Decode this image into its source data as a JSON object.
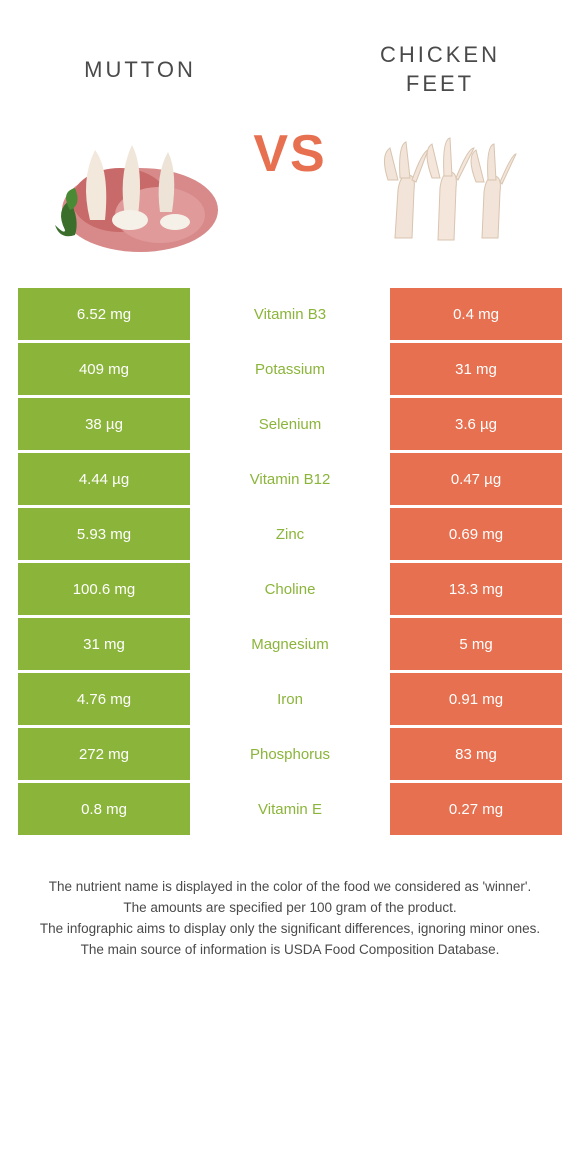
{
  "colors": {
    "green": "#8bb53a",
    "orange": "#e67050",
    "vs": "#e67050",
    "title_text": "#4a4a4a",
    "footnote_text": "#4a4a4a",
    "white": "#ffffff"
  },
  "header": {
    "left_title": "MUTTON",
    "right_title": "CHICKEN\nFEET",
    "vs_label": "VS"
  },
  "table": {
    "rows": [
      {
        "left": "6.52 mg",
        "label": "Vitamin B3",
        "right": "0.4 mg",
        "winner": "left"
      },
      {
        "left": "409 mg",
        "label": "Potassium",
        "right": "31 mg",
        "winner": "left"
      },
      {
        "left": "38 µg",
        "label": "Selenium",
        "right": "3.6 µg",
        "winner": "left"
      },
      {
        "left": "4.44 µg",
        "label": "Vitamin B12",
        "right": "0.47 µg",
        "winner": "left"
      },
      {
        "left": "5.93 mg",
        "label": "Zinc",
        "right": "0.69 mg",
        "winner": "left"
      },
      {
        "left": "100.6 mg",
        "label": "Choline",
        "right": "13.3 mg",
        "winner": "left"
      },
      {
        "left": "31 mg",
        "label": "Magnesium",
        "right": "5 mg",
        "winner": "left"
      },
      {
        "left": "4.76 mg",
        "label": "Iron",
        "right": "0.91 mg",
        "winner": "left"
      },
      {
        "left": "272 mg",
        "label": "Phosphorus",
        "right": "83 mg",
        "winner": "left"
      },
      {
        "left": "0.8 mg",
        "label": "Vitamin E",
        "right": "0.27 mg",
        "winner": "left"
      }
    ]
  },
  "footnotes": [
    "The nutrient name is displayed in the color of the food we considered as 'winner'.",
    "The amounts are specified per 100 gram of the product.",
    "The infographic aims to display only the significant differences, ignoring minor ones.",
    "The main source of information is USDA Food Composition Database."
  ]
}
